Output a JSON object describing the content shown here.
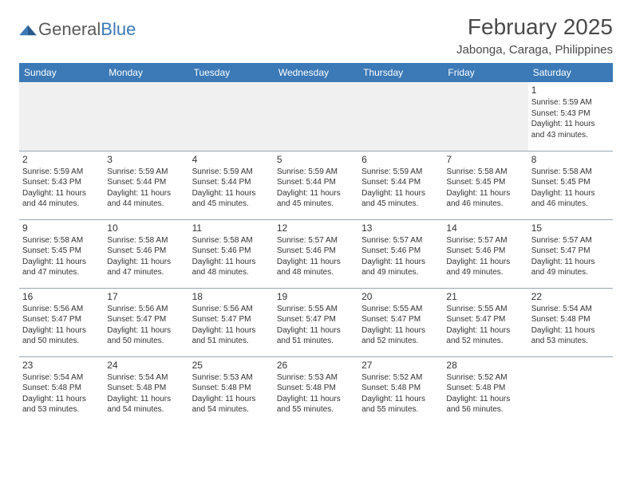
{
  "logo": {
    "text1": "General",
    "text2": "Blue"
  },
  "title": "February 2025",
  "location": "Jabonga, Caraga, Philippines",
  "colors": {
    "header_bg": "#3b79b7",
    "header_text": "#ffffff",
    "border": "#9aa7b3",
    "text": "#333333",
    "logo_gray": "#5a5a5a",
    "logo_blue": "#3b79b7",
    "first_row_bg": "#f0f0f0"
  },
  "weekdays": [
    "Sunday",
    "Monday",
    "Tuesday",
    "Wednesday",
    "Thursday",
    "Friday",
    "Saturday"
  ],
  "weeks": [
    [
      null,
      null,
      null,
      null,
      null,
      null,
      {
        "d": "1",
        "sr": "5:59 AM",
        "ss": "5:43 PM",
        "dl": "11 hours and 43 minutes."
      }
    ],
    [
      {
        "d": "2",
        "sr": "5:59 AM",
        "ss": "5:43 PM",
        "dl": "11 hours and 44 minutes."
      },
      {
        "d": "3",
        "sr": "5:59 AM",
        "ss": "5:44 PM",
        "dl": "11 hours and 44 minutes."
      },
      {
        "d": "4",
        "sr": "5:59 AM",
        "ss": "5:44 PM",
        "dl": "11 hours and 45 minutes."
      },
      {
        "d": "5",
        "sr": "5:59 AM",
        "ss": "5:44 PM",
        "dl": "11 hours and 45 minutes."
      },
      {
        "d": "6",
        "sr": "5:59 AM",
        "ss": "5:44 PM",
        "dl": "11 hours and 45 minutes."
      },
      {
        "d": "7",
        "sr": "5:58 AM",
        "ss": "5:45 PM",
        "dl": "11 hours and 46 minutes."
      },
      {
        "d": "8",
        "sr": "5:58 AM",
        "ss": "5:45 PM",
        "dl": "11 hours and 46 minutes."
      }
    ],
    [
      {
        "d": "9",
        "sr": "5:58 AM",
        "ss": "5:45 PM",
        "dl": "11 hours and 47 minutes."
      },
      {
        "d": "10",
        "sr": "5:58 AM",
        "ss": "5:46 PM",
        "dl": "11 hours and 47 minutes."
      },
      {
        "d": "11",
        "sr": "5:58 AM",
        "ss": "5:46 PM",
        "dl": "11 hours and 48 minutes."
      },
      {
        "d": "12",
        "sr": "5:57 AM",
        "ss": "5:46 PM",
        "dl": "11 hours and 48 minutes."
      },
      {
        "d": "13",
        "sr": "5:57 AM",
        "ss": "5:46 PM",
        "dl": "11 hours and 49 minutes."
      },
      {
        "d": "14",
        "sr": "5:57 AM",
        "ss": "5:46 PM",
        "dl": "11 hours and 49 minutes."
      },
      {
        "d": "15",
        "sr": "5:57 AM",
        "ss": "5:47 PM",
        "dl": "11 hours and 49 minutes."
      }
    ],
    [
      {
        "d": "16",
        "sr": "5:56 AM",
        "ss": "5:47 PM",
        "dl": "11 hours and 50 minutes."
      },
      {
        "d": "17",
        "sr": "5:56 AM",
        "ss": "5:47 PM",
        "dl": "11 hours and 50 minutes."
      },
      {
        "d": "18",
        "sr": "5:56 AM",
        "ss": "5:47 PM",
        "dl": "11 hours and 51 minutes."
      },
      {
        "d": "19",
        "sr": "5:55 AM",
        "ss": "5:47 PM",
        "dl": "11 hours and 51 minutes."
      },
      {
        "d": "20",
        "sr": "5:55 AM",
        "ss": "5:47 PM",
        "dl": "11 hours and 52 minutes."
      },
      {
        "d": "21",
        "sr": "5:55 AM",
        "ss": "5:47 PM",
        "dl": "11 hours and 52 minutes."
      },
      {
        "d": "22",
        "sr": "5:54 AM",
        "ss": "5:48 PM",
        "dl": "11 hours and 53 minutes."
      }
    ],
    [
      {
        "d": "23",
        "sr": "5:54 AM",
        "ss": "5:48 PM",
        "dl": "11 hours and 53 minutes."
      },
      {
        "d": "24",
        "sr": "5:54 AM",
        "ss": "5:48 PM",
        "dl": "11 hours and 54 minutes."
      },
      {
        "d": "25",
        "sr": "5:53 AM",
        "ss": "5:48 PM",
        "dl": "11 hours and 54 minutes."
      },
      {
        "d": "26",
        "sr": "5:53 AM",
        "ss": "5:48 PM",
        "dl": "11 hours and 55 minutes."
      },
      {
        "d": "27",
        "sr": "5:52 AM",
        "ss": "5:48 PM",
        "dl": "11 hours and 55 minutes."
      },
      {
        "d": "28",
        "sr": "5:52 AM",
        "ss": "5:48 PM",
        "dl": "11 hours and 56 minutes."
      },
      null
    ]
  ],
  "labels": {
    "sunrise": "Sunrise: ",
    "sunset": "Sunset: ",
    "daylight": "Daylight: "
  }
}
